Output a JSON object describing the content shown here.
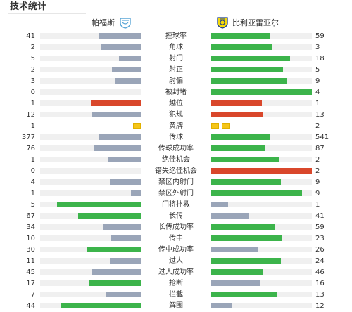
{
  "title": "技术统计",
  "colors": {
    "green": "#3cb44b",
    "gray": "#9aa5b8",
    "red": "#d9472b",
    "yellow": "#f5c518",
    "track": "#f0f0f0"
  },
  "home": {
    "name": "帕福斯",
    "crest_icon": "pafos-crest-icon"
  },
  "away": {
    "name": "比利亚雷亚尔",
    "crest_icon": "villarreal-crest-icon"
  },
  "stats": [
    {
      "label": "控球率",
      "home": "41",
      "away": "59",
      "hf": 0.41,
      "af": 0.59,
      "hc": "gray",
      "ac": "green"
    },
    {
      "label": "角球",
      "home": "2",
      "away": "3",
      "hf": 0.4,
      "af": 0.6,
      "hc": "gray",
      "ac": "green"
    },
    {
      "label": "射门",
      "home": "5",
      "away": "18",
      "hf": 0.22,
      "af": 0.78,
      "hc": "gray",
      "ac": "green"
    },
    {
      "label": "射正",
      "home": "2",
      "away": "5",
      "hf": 0.29,
      "af": 0.71,
      "hc": "gray",
      "ac": "green"
    },
    {
      "label": "射偏",
      "home": "3",
      "away": "9",
      "hf": 0.25,
      "af": 0.75,
      "hc": "gray",
      "ac": "green"
    },
    {
      "label": "被封堵",
      "home": "0",
      "away": "4",
      "hf": 0.0,
      "af": 1.0,
      "hc": "gray",
      "ac": "green"
    },
    {
      "label": "越位",
      "home": "1",
      "away": "1",
      "hf": 0.5,
      "af": 0.5,
      "hc": "red",
      "ac": "red"
    },
    {
      "label": "犯规",
      "home": "12",
      "away": "13",
      "hf": 0.48,
      "af": 0.52,
      "hc": "gray",
      "ac": "red"
    },
    {
      "label": "黄牌",
      "home": "1",
      "away": "2",
      "cards": true
    },
    {
      "label": "传球",
      "home": "377",
      "away": "541",
      "hf": 0.41,
      "af": 0.59,
      "hc": "gray",
      "ac": "green"
    },
    {
      "label": "传球成功率",
      "home": "76",
      "away": "87",
      "hf": 0.47,
      "af": 0.53,
      "hc": "gray",
      "ac": "green"
    },
    {
      "label": "绝佳机会",
      "home": "1",
      "away": "2",
      "hf": 0.33,
      "af": 0.67,
      "hc": "gray",
      "ac": "green"
    },
    {
      "label": "错失绝佳机会",
      "home": "0",
      "away": "2",
      "hf": 0.0,
      "af": 1.0,
      "hc": "gray",
      "ac": "red"
    },
    {
      "label": "禁区内射门",
      "home": "4",
      "away": "9",
      "hf": 0.31,
      "af": 0.69,
      "hc": "gray",
      "ac": "green"
    },
    {
      "label": "禁区外射门",
      "home": "1",
      "away": "9",
      "hf": 0.1,
      "af": 0.9,
      "hc": "gray",
      "ac": "green"
    },
    {
      "label": "门将扑救",
      "home": "5",
      "away": "1",
      "hf": 0.83,
      "af": 0.17,
      "hc": "green",
      "ac": "gray"
    },
    {
      "label": "长传",
      "home": "67",
      "away": "41",
      "hf": 0.62,
      "af": 0.38,
      "hc": "green",
      "ac": "gray"
    },
    {
      "label": "长传成功率",
      "home": "34",
      "away": "59",
      "hf": 0.37,
      "af": 0.63,
      "hc": "gray",
      "ac": "green"
    },
    {
      "label": "传中",
      "home": "10",
      "away": "23",
      "hf": 0.3,
      "af": 0.7,
      "hc": "gray",
      "ac": "green"
    },
    {
      "label": "传中成功率",
      "home": "30",
      "away": "26",
      "hf": 0.54,
      "af": 0.46,
      "hc": "green",
      "ac": "gray"
    },
    {
      "label": "过人",
      "home": "11",
      "away": "24",
      "hf": 0.31,
      "af": 0.69,
      "hc": "gray",
      "ac": "green"
    },
    {
      "label": "过人成功率",
      "home": "45",
      "away": "46",
      "hf": 0.49,
      "af": 0.51,
      "hc": "gray",
      "ac": "green"
    },
    {
      "label": "抢断",
      "home": "17",
      "away": "16",
      "hf": 0.52,
      "af": 0.48,
      "hc": "green",
      "ac": "gray"
    },
    {
      "label": "拦截",
      "home": "7",
      "away": "13",
      "hf": 0.35,
      "af": 0.65,
      "hc": "gray",
      "ac": "green"
    },
    {
      "label": "解围",
      "home": "44",
      "away": "12",
      "hf": 0.79,
      "af": 0.21,
      "hc": "green",
      "ac": "gray"
    }
  ]
}
